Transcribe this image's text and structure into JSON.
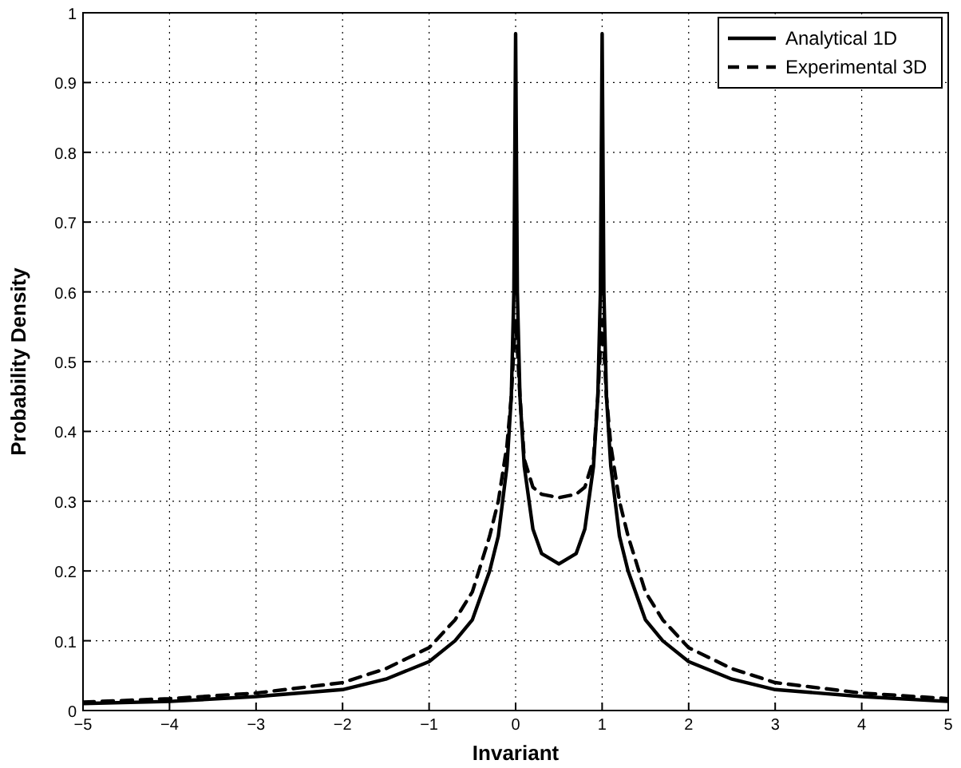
{
  "chart_data": {
    "type": "line",
    "xlabel": "Invariant",
    "ylabel": "Probability Density",
    "xlim": [
      -5,
      5
    ],
    "ylim": [
      0,
      1
    ],
    "xticks": [
      {
        "value": -5,
        "label": "−5"
      },
      {
        "value": -4,
        "label": "−4"
      },
      {
        "value": -3,
        "label": "−3"
      },
      {
        "value": -2,
        "label": "−2"
      },
      {
        "value": -1,
        "label": "−1"
      },
      0,
      1,
      2,
      3,
      4,
      5
    ],
    "yticks": [
      0,
      0.1,
      0.2,
      0.3,
      0.4,
      0.5,
      0.6,
      0.7,
      0.8,
      0.9,
      1
    ],
    "grid": true,
    "legend": "top right",
    "x": [
      -5,
      -4,
      -3,
      -2,
      -1.5,
      -1,
      -0.7,
      -0.5,
      -0.3,
      -0.2,
      -0.1,
      -0.05,
      -0.02,
      0,
      0.02,
      0.05,
      0.1,
      0.2,
      0.3,
      0.5,
      0.7,
      0.8,
      0.9,
      0.95,
      0.98,
      1,
      1.02,
      1.05,
      1.1,
      1.2,
      1.3,
      1.5,
      1.7,
      2,
      2.5,
      3,
      4,
      5
    ],
    "series": [
      {
        "name": "Analytical 1D",
        "color": "#000000",
        "line_style": "solid",
        "values": [
          0.01,
          0.013,
          0.02,
          0.03,
          0.045,
          0.07,
          0.1,
          0.13,
          0.2,
          0.25,
          0.35,
          0.45,
          0.6,
          0.97,
          0.6,
          0.45,
          0.35,
          0.26,
          0.225,
          0.21,
          0.225,
          0.26,
          0.35,
          0.45,
          0.6,
          0.97,
          0.6,
          0.45,
          0.35,
          0.25,
          0.2,
          0.13,
          0.1,
          0.07,
          0.045,
          0.03,
          0.02,
          0.013
        ]
      },
      {
        "name": "Experimental 3D",
        "color": "#000000",
        "line_style": "dashed",
        "values": [
          0.012,
          0.017,
          0.025,
          0.04,
          0.06,
          0.09,
          0.13,
          0.17,
          0.25,
          0.3,
          0.38,
          0.45,
          0.52,
          0.56,
          0.52,
          0.45,
          0.36,
          0.32,
          0.31,
          0.305,
          0.31,
          0.32,
          0.36,
          0.45,
          0.52,
          0.56,
          0.52,
          0.45,
          0.38,
          0.3,
          0.25,
          0.17,
          0.13,
          0.09,
          0.06,
          0.04,
          0.025,
          0.017
        ]
      }
    ]
  }
}
